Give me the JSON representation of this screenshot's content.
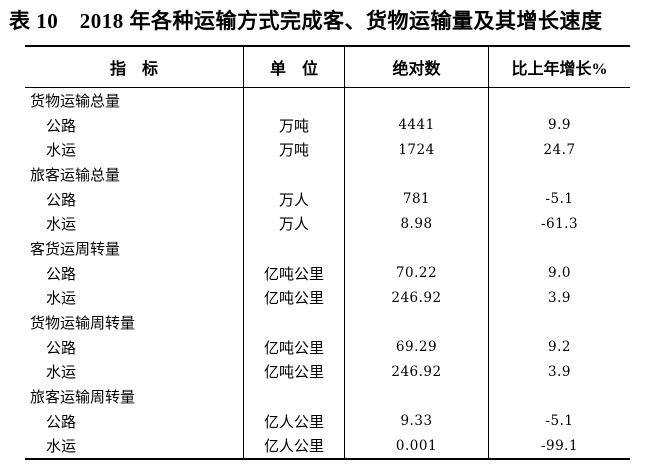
{
  "title": "表 10　2018 年各种运输方式完成客、货物运输量及其增长速度",
  "table": {
    "headers": [
      "指　标",
      "单　位",
      "绝对数",
      "比上年增长%"
    ],
    "rows": [
      {
        "type": "group",
        "indicator": "货物运输总量",
        "unit": "",
        "value": "",
        "growth": ""
      },
      {
        "type": "item",
        "indicator": "公路",
        "unit": "万吨",
        "value": "4441",
        "growth": "9.9"
      },
      {
        "type": "item",
        "indicator": "水运",
        "unit": "万吨",
        "value": "1724",
        "growth": "24.7"
      },
      {
        "type": "group",
        "indicator": "旅客运输总量",
        "unit": "",
        "value": "",
        "growth": ""
      },
      {
        "type": "item",
        "indicator": "公路",
        "unit": "万人",
        "value": "781",
        "growth": "-5.1"
      },
      {
        "type": "item",
        "indicator": "水运",
        "unit": "万人",
        "value": "8.98",
        "growth": "-61.3"
      },
      {
        "type": "group",
        "indicator": "客货运周转量",
        "unit": "",
        "value": "",
        "growth": ""
      },
      {
        "type": "item",
        "indicator": "公路",
        "unit": "亿吨公里",
        "value": "70.22",
        "growth": "9.0"
      },
      {
        "type": "item",
        "indicator": "水运",
        "unit": "亿吨公里",
        "value": "246.92",
        "growth": "3.9"
      },
      {
        "type": "group",
        "indicator": "货物运输周转量",
        "unit": "",
        "value": "",
        "growth": ""
      },
      {
        "type": "item",
        "indicator": "公路",
        "unit": "亿吨公里",
        "value": "69.29",
        "growth": "9.2"
      },
      {
        "type": "item",
        "indicator": "水运",
        "unit": "亿吨公里",
        "value": "246.92",
        "growth": "3.9"
      },
      {
        "type": "group",
        "indicator": "旅客运输周转量",
        "unit": "",
        "value": "",
        "growth": ""
      },
      {
        "type": "item",
        "indicator": "公路",
        "unit": "亿人公里",
        "value": "9.33",
        "growth": "-5.1"
      },
      {
        "type": "item",
        "indicator": "水运",
        "unit": "亿人公里",
        "value": "0.001",
        "growth": "-99.1"
      }
    ]
  }
}
